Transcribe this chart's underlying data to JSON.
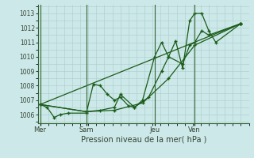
{
  "title": "Pression niveau de la mer( hPa )",
  "background_color": "#cce8e8",
  "plot_bg_color": "#cce8e8",
  "grid_color": "#aacccc",
  "line_color": "#1a5c1a",
  "ylim": [
    1005.4,
    1013.6
  ],
  "yticks": [
    1006,
    1007,
    1008,
    1009,
    1010,
    1011,
    1012,
    1013
  ],
  "day_labels": [
    "Mer",
    "Sam",
    "Jeu",
    "Ven"
  ],
  "day_positions": [
    0.0,
    0.23,
    0.57,
    0.77
  ],
  "vline_color": "#336633",
  "lines": [
    [
      [
        0.0,
        1006.7
      ],
      [
        0.035,
        1006.5
      ],
      [
        0.07,
        1005.8
      ],
      [
        0.1,
        1006.0
      ],
      [
        0.14,
        1006.1
      ],
      [
        0.23,
        1006.1
      ],
      [
        0.265,
        1008.1
      ],
      [
        0.3,
        1008.0
      ],
      [
        0.335,
        1007.4
      ],
      [
        0.37,
        1007.0
      ],
      [
        0.4,
        1007.2
      ],
      [
        0.44,
        1006.6
      ],
      [
        0.47,
        1006.5
      ],
      [
        0.51,
        1007.0
      ],
      [
        0.57,
        1010.0
      ],
      [
        0.605,
        1011.0
      ],
      [
        0.64,
        1010.0
      ],
      [
        0.675,
        1011.1
      ],
      [
        0.71,
        1009.2
      ],
      [
        0.745,
        1012.5
      ],
      [
        0.77,
        1013.0
      ],
      [
        0.805,
        1013.0
      ],
      [
        0.84,
        1011.8
      ],
      [
        0.875,
        1011.0
      ],
      [
        1.0,
        1012.3
      ]
    ],
    [
      [
        0.0,
        1006.7
      ],
      [
        0.23,
        1006.2
      ],
      [
        0.3,
        1006.3
      ],
      [
        0.37,
        1006.5
      ],
      [
        0.4,
        1007.4
      ],
      [
        0.47,
        1006.5
      ],
      [
        0.54,
        1007.2
      ],
      [
        0.605,
        1009.0
      ],
      [
        0.64,
        1010.0
      ],
      [
        0.71,
        1009.5
      ],
      [
        0.745,
        1010.8
      ],
      [
        0.77,
        1011.0
      ],
      [
        0.805,
        1011.8
      ],
      [
        0.84,
        1011.5
      ],
      [
        1.0,
        1012.3
      ]
    ],
    [
      [
        0.0,
        1006.7
      ],
      [
        0.23,
        1006.2
      ],
      [
        0.37,
        1006.3
      ],
      [
        0.51,
        1006.8
      ],
      [
        0.64,
        1008.5
      ],
      [
        0.77,
        1010.8
      ],
      [
        1.0,
        1012.3
      ]
    ],
    [
      [
        0.0,
        1006.7
      ],
      [
        1.0,
        1012.3
      ]
    ]
  ]
}
